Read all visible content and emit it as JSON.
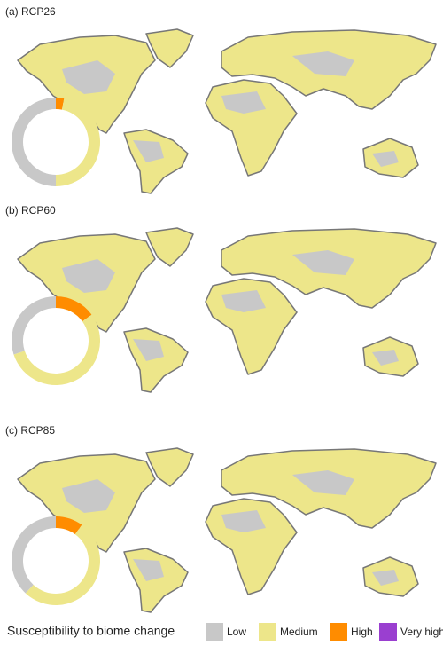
{
  "chart_data": [
    {
      "type": "donut",
      "title": "(a) RCP26",
      "categories": [
        "Low",
        "Medium",
        "High",
        "Very high"
      ],
      "values": [
        50,
        47,
        3,
        0
      ],
      "colors": [
        "#c8c8c8",
        "#ede68a",
        "#ff8c00",
        "#9a3fd0"
      ]
    },
    {
      "type": "donut",
      "title": "(b) RCP60",
      "categories": [
        "Low",
        "Medium",
        "High",
        "Very high"
      ],
      "values": [
        30,
        55,
        15,
        0
      ],
      "colors": [
        "#c8c8c8",
        "#ede68a",
        "#ff8c00",
        "#9a3fd0"
      ]
    },
    {
      "type": "donut",
      "title": "(c) RCP85",
      "categories": [
        "Low",
        "Medium",
        "High",
        "Very high"
      ],
      "values": [
        38,
        52,
        10,
        0
      ],
      "colors": [
        "#c8c8c8",
        "#ede68a",
        "#ff8c00",
        "#9a3fd0"
      ]
    }
  ],
  "legend_title": "Susceptibility to biome change"
}
